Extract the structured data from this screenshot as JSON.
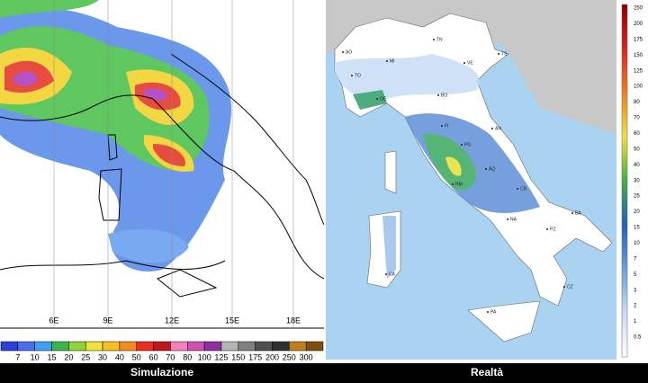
{
  "left_panel": {
    "caption": "Simulazione",
    "lon_labels": [
      "6E",
      "9E",
      "12E",
      "15E",
      "18E"
    ],
    "legend_labels": [
      7,
      10,
      15,
      20,
      25,
      30,
      40,
      50,
      60,
      70,
      80,
      100,
      125,
      150,
      175,
      200,
      250,
      300
    ]
  },
  "right_panel": {
    "caption": "Realtà",
    "legend_labels": [
      250,
      200,
      175,
      150,
      125,
      100,
      80,
      70,
      60,
      50,
      40,
      30,
      25,
      20,
      15,
      10,
      7,
      5,
      3,
      2,
      1,
      0.5
    ],
    "cities": [
      "AO",
      "TO",
      "MI",
      "TN",
      "VE",
      "TS",
      "GE",
      "BO",
      "FI",
      "AN",
      "PG",
      "AQ",
      "RM",
      "CB",
      "NA",
      "BA",
      "PZ",
      "CZ",
      "PA",
      "CA"
    ]
  }
}
